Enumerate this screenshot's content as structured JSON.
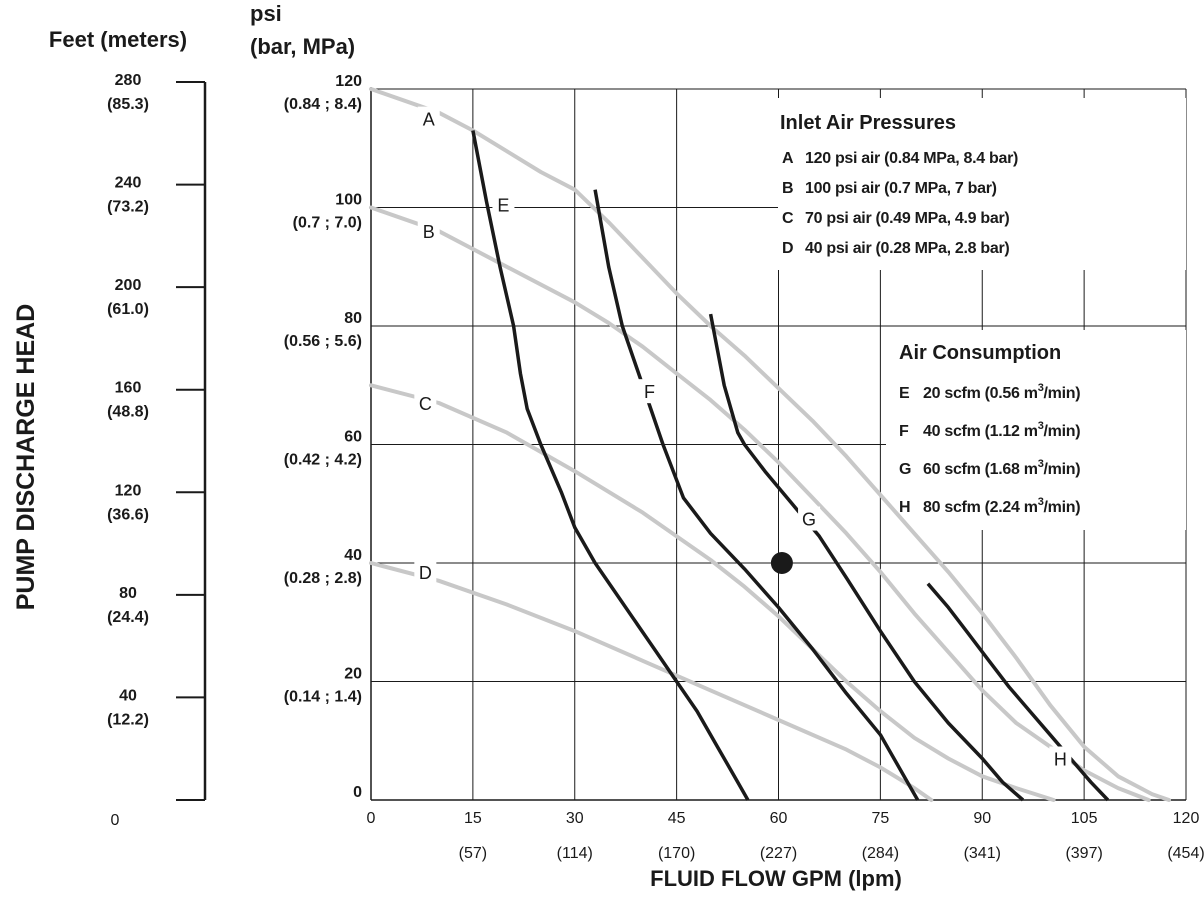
{
  "chart_data": {
    "type": "line",
    "title": "",
    "xlabel": "FLUID FLOW GPM (lpm)",
    "ylabel_left_title": "Feet (meters)",
    "ylabel_psi_title": [
      "psi",
      "(bar, MPa)"
    ],
    "ylabel_vertical": "PUMP DISCHARGE HEAD",
    "xlim": [
      0,
      120
    ],
    "ylim": [
      0,
      120
    ],
    "grid": true,
    "x_ticks": [
      {
        "v": 0,
        "top": "0",
        "bottom": ""
      },
      {
        "v": 15,
        "top": "15",
        "bottom": "(57)"
      },
      {
        "v": 30,
        "top": "30",
        "bottom": "(114)"
      },
      {
        "v": 45,
        "top": "45",
        "bottom": "(170)"
      },
      {
        "v": 60,
        "top": "60",
        "bottom": "(227)"
      },
      {
        "v": 75,
        "top": "75",
        "bottom": "(284)"
      },
      {
        "v": 90,
        "top": "90",
        "bottom": "(341)"
      },
      {
        "v": 105,
        "top": "105",
        "bottom": "(397)"
      },
      {
        "v": 120,
        "top": "120",
        "bottom": "(454)"
      }
    ],
    "psi_ticks": [
      {
        "v": 0,
        "top": "0",
        "bottom": ""
      },
      {
        "v": 20,
        "top": "20",
        "bottom": "(0.14 ; 1.4)"
      },
      {
        "v": 40,
        "top": "40",
        "bottom": "(0.28 ; 2.8)"
      },
      {
        "v": 60,
        "top": "60",
        "bottom": "(0.42 ; 4.2)"
      },
      {
        "v": 80,
        "top": "80",
        "bottom": "(0.56 ; 5.6)"
      },
      {
        "v": 100,
        "top": "100",
        "bottom": "(0.7 ; 7.0)"
      },
      {
        "v": 120,
        "top": "120",
        "bottom": "(0.84 ; 8.4)"
      }
    ],
    "feet_ticks": [
      {
        "v": 0,
        "top": "0",
        "bottom": ""
      },
      {
        "v": 40,
        "top": "40",
        "bottom": "(12.2)"
      },
      {
        "v": 80,
        "top": "80",
        "bottom": "(24.4)"
      },
      {
        "v": 120,
        "top": "120",
        "bottom": "(36.6)"
      },
      {
        "v": 160,
        "top": "160",
        "bottom": "(48.8)"
      },
      {
        "v": 200,
        "top": "200",
        "bottom": "(61.0)"
      },
      {
        "v": 240,
        "top": "240",
        "bottom": "(73.2)"
      },
      {
        "v": 280,
        "top": "280",
        "bottom": "(85.3)"
      }
    ],
    "feet_range": [
      0,
      280
    ],
    "pressure_series": [
      {
        "name": "A",
        "color": "#c8c8c8",
        "label_at": [
          8.5,
          115
        ],
        "x": [
          0,
          10,
          15,
          20,
          25,
          30,
          35,
          40,
          45,
          50,
          55,
          60,
          65,
          70,
          75,
          80,
          85,
          90,
          95,
          100,
          105,
          110,
          115,
          117.5
        ],
        "y": [
          120,
          116,
          113,
          109.5,
          106,
          103,
          97.5,
          91.5,
          85.5,
          80,
          75,
          69.5,
          64,
          58,
          51.5,
          45,
          38.5,
          31.5,
          24,
          16,
          9,
          4,
          1,
          0
        ]
      },
      {
        "name": "B",
        "color": "#c8c8c8",
        "label_at": [
          8.5,
          96
        ],
        "x": [
          0,
          10,
          20,
          30,
          35,
          40,
          45,
          50,
          55,
          60,
          65,
          70,
          75,
          80,
          85,
          90,
          95,
          100,
          105,
          110,
          114.5
        ],
        "y": [
          100,
          96,
          90,
          84,
          80.5,
          76.5,
          72,
          67.5,
          62.5,
          57,
          51,
          45,
          38.5,
          31.5,
          25,
          18.5,
          13,
          9,
          5,
          2,
          0
        ]
      },
      {
        "name": "C",
        "color": "#c8c8c8",
        "label_at": [
          8,
          67
        ],
        "x": [
          0,
          10,
          20,
          30,
          40,
          50,
          55,
          60,
          65,
          70,
          75,
          80,
          85,
          90,
          95,
          100.5
        ],
        "y": [
          70,
          67,
          62,
          55.5,
          48.5,
          40.5,
          36,
          31,
          25.5,
          20,
          15,
          10.5,
          7,
          4,
          2,
          0
        ]
      },
      {
        "name": "D",
        "color": "#c8c8c8",
        "label_at": [
          8,
          38.5
        ],
        "x": [
          0,
          10,
          20,
          30,
          40,
          50,
          60,
          70,
          75,
          80,
          82.5
        ],
        "y": [
          40,
          37,
          33,
          28.5,
          23.5,
          18.5,
          13.5,
          8.5,
          5.5,
          2,
          0
        ]
      }
    ],
    "air_series": [
      {
        "name": "E",
        "color": "#1a1a1a",
        "label_at": [
          19.5,
          100.5
        ],
        "x": [
          15,
          17,
          19,
          21,
          22,
          23,
          25,
          28,
          30,
          33,
          36,
          39,
          42,
          45,
          48,
          51,
          54,
          55.5
        ],
        "y": [
          113,
          101,
          90,
          80,
          72,
          66,
          60,
          52,
          46,
          40,
          35,
          30,
          25,
          20,
          15,
          9,
          3,
          0
        ]
      },
      {
        "name": "F",
        "color": "#1a1a1a",
        "label_at": [
          41,
          69
        ],
        "x": [
          33,
          35,
          37,
          40,
          43,
          46,
          50,
          55,
          60,
          65,
          70,
          75,
          79,
          80.5
        ],
        "y": [
          103,
          90,
          80,
          70,
          60,
          51,
          45,
          39,
          32.5,
          25.5,
          18,
          11,
          3,
          0
        ]
      },
      {
        "name": "G",
        "color": "#1a1a1a",
        "label_at": [
          64.5,
          47.5
        ],
        "x": [
          50,
          52,
          54,
          55,
          58,
          62,
          66,
          70,
          75,
          80,
          85,
          90,
          93,
          96
        ],
        "y": [
          82,
          70,
          62,
          60,
          55.5,
          50,
          44.5,
          37.5,
          28.5,
          20,
          13,
          7,
          3,
          0
        ]
      },
      {
        "name": "H",
        "color": "#1a1a1a",
        "label_at": [
          101.5,
          7
        ],
        "x": [
          82,
          85,
          88,
          91,
          94,
          97,
          100,
          103,
          106,
          108.5
        ],
        "y": [
          36.5,
          32.5,
          28,
          23.5,
          19,
          15,
          11,
          7,
          3,
          0
        ]
      }
    ],
    "operating_point": {
      "x": 60.5,
      "y": 40
    },
    "legend_inlet": {
      "title": "Inlet Air Pressures",
      "position": "top-right",
      "items": [
        {
          "key": "A",
          "text": "120 psi air (0.84 MPa, 8.4 bar)"
        },
        {
          "key": "B",
          "text": "100 psi air (0.7 MPa, 7 bar)"
        },
        {
          "key": "C",
          "text": "70 psi air (0.49 MPa, 4.9 bar)"
        },
        {
          "key": "D",
          "text": "40 psi air (0.28 MPa, 2.8 bar)"
        }
      ]
    },
    "legend_air": {
      "title": "Air Consumption",
      "position": "right",
      "items": [
        {
          "key": "E",
          "text": "20 scfm (0.56 m",
          "sup": "3",
          "tail": "/min)"
        },
        {
          "key": "F",
          "text": "40 scfm (1.12 m",
          "sup": "3",
          "tail": "/min)"
        },
        {
          "key": "G",
          "text": "60 scfm (1.68 m",
          "sup": "3",
          "tail": "/min)"
        },
        {
          "key": "H",
          "text": "80 scfm (2.24 m",
          "sup": "3",
          "tail": "/min)"
        }
      ]
    }
  }
}
